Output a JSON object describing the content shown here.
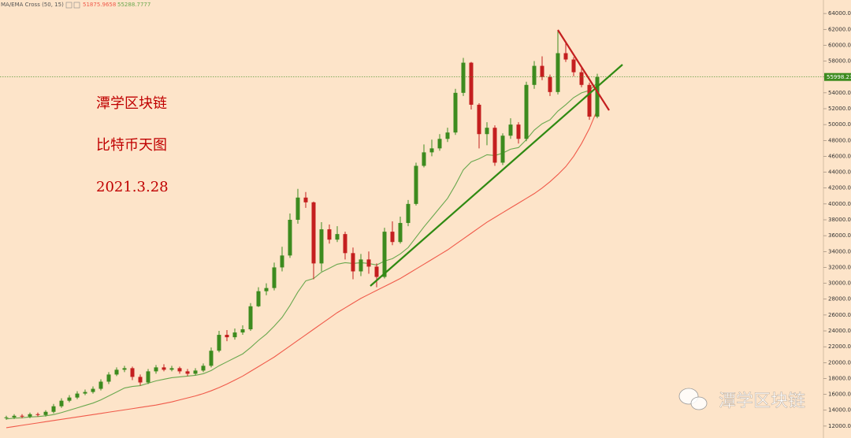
{
  "chart_data": {
    "type": "candlestick",
    "annotations": [
      "潭学区块链",
      "比特币天图",
      "2021.3.28"
    ],
    "watermark": "潭学区块链",
    "up_color": "#3d8b1f",
    "down_color": "#c41f1f",
    "background": "#fde4c9",
    "ylim": [
      10500,
      65700
    ],
    "yticks": [
      {
        "value": 12000,
        "label": "12000.00"
      },
      {
        "value": 14000,
        "label": "14000.00"
      },
      {
        "value": 16000,
        "label": "16000.00"
      },
      {
        "value": 18000,
        "label": "18000.00"
      },
      {
        "value": 20000,
        "label": "20000.00"
      },
      {
        "value": 22000,
        "label": "22000.00"
      },
      {
        "value": 24000,
        "label": "24000.00"
      },
      {
        "value": 26000,
        "label": "26000.00"
      },
      {
        "value": 28000,
        "label": "28000.00"
      },
      {
        "value": 30000,
        "label": "30000.00"
      },
      {
        "value": 32000,
        "label": "32000.00"
      },
      {
        "value": 34000,
        "label": "34000.00"
      },
      {
        "value": 36000,
        "label": "36000.00"
      },
      {
        "value": 38000,
        "label": "38000.00"
      },
      {
        "value": 40000,
        "label": "40000.00"
      },
      {
        "value": 42000,
        "label": "42000.00"
      },
      {
        "value": 44000,
        "label": "44000.00"
      },
      {
        "value": 46000,
        "label": "46000.00"
      },
      {
        "value": 48000,
        "label": "48000.00"
      },
      {
        "value": 50000,
        "label": "50000.00"
      },
      {
        "value": 52000,
        "label": "52000.00"
      },
      {
        "value": 54000,
        "label": "54000.00"
      },
      {
        "value": 56000,
        "label": "56000.00"
      },
      {
        "value": 58000,
        "label": "58000.00"
      },
      {
        "value": 60000,
        "label": "60000.00"
      },
      {
        "value": 62000,
        "label": "62000.00"
      },
      {
        "value": 64000,
        "label": "64000.00"
      }
    ],
    "open": [
      13000,
      13100,
      13300,
      13200,
      13500,
      13400,
      13800,
      14500,
      15200,
      15600,
      16100,
      16300,
      16700,
      17600,
      18500,
      19100,
      19300,
      18200,
      17500,
      18900,
      19400,
      19100,
      19300,
      18900,
      18600,
      19000,
      19600,
      21500,
      23500,
      23200,
      23800,
      24200,
      27100,
      29000,
      29400,
      32000,
      33500,
      38000,
      40800,
      40200,
      32500,
      36800,
      35500,
      36200,
      33800,
      31500,
      33000,
      32100,
      30800,
      36500,
      35200,
      37600,
      40000,
      44800,
      46500,
      47000,
      48200,
      49000,
      54000,
      57800,
      52500,
      48800,
      49600,
      45200,
      48600,
      50000,
      48200,
      55000,
      57400,
      56000,
      54100,
      59000,
      58200,
      56600,
      55000,
      51000
    ],
    "high": [
      13300,
      13500,
      13500,
      13700,
      13700,
      14000,
      14800,
      15500,
      15900,
      16400,
      16600,
      17000,
      17900,
      18800,
      19400,
      19600,
      19500,
      18500,
      19200,
      19700,
      19800,
      19600,
      19500,
      19200,
      19300,
      19900,
      21900,
      24000,
      24100,
      24300,
      24700,
      27500,
      29500,
      30000,
      32600,
      34600,
      38800,
      41900,
      41500,
      40300,
      37700,
      37400,
      37200,
      36500,
      34500,
      33700,
      34000,
      32500,
      37000,
      37800,
      38400,
      40500,
      45200,
      47500,
      48100,
      48800,
      49600,
      54500,
      58400,
      57900,
      52700,
      50300,
      49900,
      48900,
      50800,
      50300,
      55400,
      58000,
      58600,
      56300,
      61800,
      60500,
      58500,
      57200,
      55300,
      56400
    ],
    "low": [
      12800,
      12900,
      13000,
      13000,
      13200,
      13200,
      13600,
      14300,
      15000,
      15400,
      15900,
      16100,
      16500,
      17300,
      18300,
      18800,
      17800,
      17100,
      17300,
      18600,
      18900,
      18900,
      18600,
      18300,
      18400,
      18800,
      19400,
      21300,
      22700,
      22900,
      23500,
      24000,
      27000,
      28500,
      29100,
      31500,
      33200,
      37500,
      39500,
      30500,
      31500,
      35000,
      35200,
      33000,
      30500,
      30900,
      31200,
      29500,
      30600,
      34800,
      35000,
      37200,
      39800,
      44600,
      46000,
      46700,
      47800,
      48700,
      53600,
      51900,
      47000,
      47400,
      44800,
      44900,
      48200,
      47600,
      47900,
      54500,
      55600,
      53600,
      53800,
      57900,
      56100,
      54700,
      50600,
      50800
    ],
    "close": [
      13100,
      13300,
      13200,
      13500,
      13400,
      13800,
      14500,
      15200,
      15600,
      16100,
      16300,
      16700,
      17600,
      18500,
      19100,
      19300,
      18200,
      17500,
      18900,
      19400,
      19100,
      19300,
      18900,
      18600,
      19000,
      19600,
      21500,
      23500,
      23200,
      23800,
      24200,
      27100,
      29000,
      29400,
      32000,
      33500,
      38000,
      40800,
      40200,
      32500,
      36800,
      35500,
      36200,
      33800,
      31500,
      33000,
      32100,
      30800,
      36500,
      35200,
      37600,
      40000,
      44800,
      46500,
      47000,
      48200,
      49000,
      54000,
      57800,
      52500,
      48800,
      49600,
      45200,
      48600,
      50000,
      48200,
      55000,
      57400,
      56000,
      54100,
      59000,
      58200,
      56600,
      55000,
      51000,
      55998.23
    ],
    "indicator": {
      "label": "MA/EMA Cross (50, 15)",
      "series": [
        {
          "color": "#f05a4a",
          "values": [
            11800,
            11950,
            12100,
            12250,
            12400,
            12550,
            12700,
            12850,
            13000,
            13150,
            13300,
            13450,
            13600,
            13750,
            13900,
            14050,
            14200,
            14350,
            14500,
            14650,
            14850,
            15050,
            15300,
            15550,
            15800,
            16100,
            16450,
            16850,
            17300,
            17800,
            18300,
            18900,
            19500,
            20100,
            20700,
            21400,
            22100,
            22800,
            23500,
            24200,
            24900,
            25600,
            26300,
            26900,
            27500,
            28100,
            28600,
            29100,
            29600,
            30100,
            30600,
            31200,
            31800,
            32400,
            33000,
            33600,
            34200,
            34900,
            35600,
            36300,
            37000,
            37700,
            38300,
            38900,
            39500,
            40100,
            40700,
            41300,
            42000,
            42800,
            43700,
            44700,
            46000,
            47600,
            49500,
            51875.9658
          ]
        },
        {
          "color": "#6aa84f",
          "values": [
            12900,
            13000,
            13050,
            13150,
            13200,
            13300,
            13450,
            13700,
            14000,
            14300,
            14600,
            14900,
            15300,
            15800,
            16300,
            16800,
            17000,
            17100,
            17400,
            17700,
            17900,
            18100,
            18200,
            18300,
            18400,
            18600,
            19000,
            19600,
            20100,
            20600,
            21100,
            21900,
            22800,
            23600,
            24600,
            25700,
            27200,
            28900,
            30300,
            30600,
            31400,
            31900,
            32400,
            32600,
            32500,
            32600,
            32500,
            32300,
            32800,
            33100,
            33700,
            34500,
            35800,
            37100,
            38300,
            39500,
            40700,
            42400,
            44300,
            45300,
            45700,
            46200,
            46100,
            46400,
            46900,
            47100,
            48100,
            49300,
            50100,
            50600,
            51700,
            52500,
            53400,
            54000,
            54300,
            55288.7777
          ]
        }
      ]
    }
  }
}
